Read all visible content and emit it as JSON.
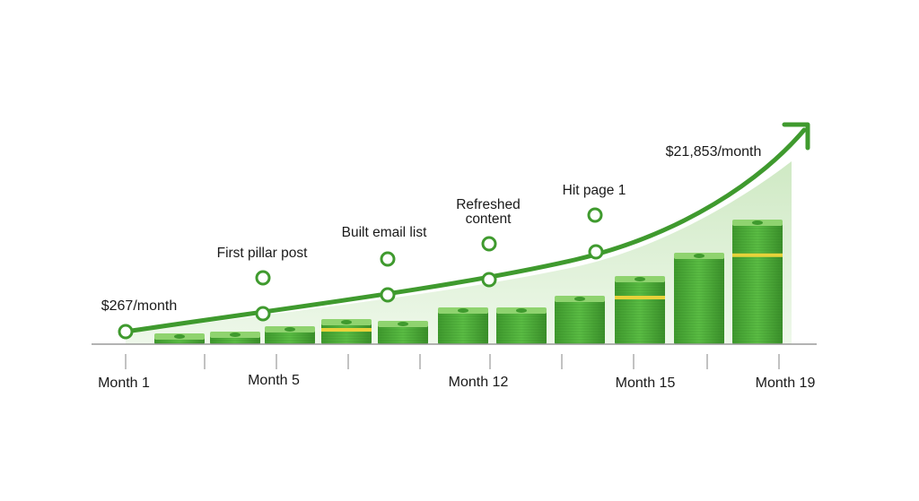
{
  "start_label": "$267/month",
  "end_label": "$21,853/month",
  "milestones": [
    {
      "lines": [
        "First pillar post"
      ]
    },
    {
      "lines": [
        "Built email list"
      ]
    },
    {
      "lines": [
        "Refreshed",
        "content"
      ]
    },
    {
      "lines": [
        "Hit page 1"
      ]
    }
  ],
  "x_labels": [
    "Month 1",
    "Month 5",
    "Month 12",
    "Month 15",
    "Month 19"
  ]
}
